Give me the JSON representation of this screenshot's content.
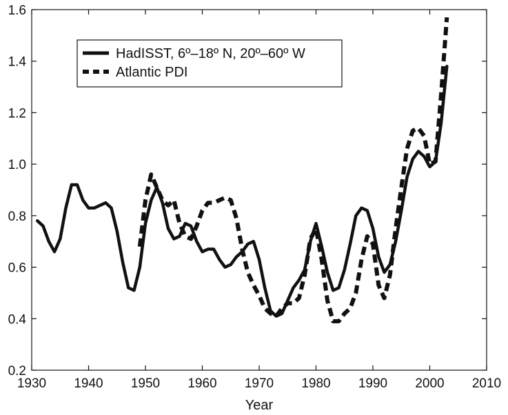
{
  "chart_data": {
    "type": "line",
    "title": "",
    "xlabel": "Year",
    "ylabel": "",
    "xlim": [
      1930,
      2010
    ],
    "ylim": [
      0.2,
      1.6
    ],
    "xticks": [
      1930,
      1940,
      1950,
      1960,
      1970,
      1980,
      1990,
      2000,
      2010
    ],
    "yticks": [
      0.2,
      0.4,
      0.6,
      0.8,
      1.0,
      1.2,
      1.4,
      1.6
    ],
    "xtick_labels": [
      "1930",
      "1940",
      "1950",
      "1960",
      "1970",
      "1980",
      "1990",
      "2000",
      "2010"
    ],
    "ytick_labels": [
      "0.2",
      "0.4",
      "0.6",
      "0.8",
      "1.0",
      "1.2",
      "1.4",
      "1.6"
    ],
    "grid": false,
    "legend_position": "top-left",
    "series": [
      {
        "name": "HadISST, 6º–18º N, 20º–60º W",
        "style": "solid",
        "color": "#111111",
        "x": [
          1931,
          1932,
          1933,
          1934,
          1935,
          1936,
          1937,
          1938,
          1939,
          1940,
          1941,
          1942,
          1943,
          1944,
          1945,
          1946,
          1947,
          1948,
          1949,
          1950,
          1951,
          1952,
          1953,
          1954,
          1955,
          1956,
          1957,
          1958,
          1959,
          1960,
          1961,
          1962,
          1963,
          1964,
          1965,
          1966,
          1967,
          1968,
          1969,
          1970,
          1971,
          1972,
          1973,
          1974,
          1975,
          1976,
          1977,
          1978,
          1979,
          1980,
          1981,
          1982,
          1983,
          1984,
          1985,
          1986,
          1987,
          1988,
          1989,
          1990,
          1991,
          1992,
          1993,
          1994,
          1995,
          1996,
          1997,
          1998,
          1999,
          2000,
          2001,
          2002,
          2003
        ],
        "y": [
          0.78,
          0.76,
          0.7,
          0.66,
          0.71,
          0.83,
          0.92,
          0.92,
          0.86,
          0.83,
          0.83,
          0.84,
          0.85,
          0.83,
          0.74,
          0.62,
          0.52,
          0.51,
          0.6,
          0.77,
          0.86,
          0.91,
          0.85,
          0.75,
          0.71,
          0.72,
          0.77,
          0.76,
          0.7,
          0.66,
          0.67,
          0.67,
          0.63,
          0.6,
          0.61,
          0.64,
          0.66,
          0.69,
          0.7,
          0.63,
          0.52,
          0.43,
          0.41,
          0.42,
          0.47,
          0.52,
          0.55,
          0.59,
          0.7,
          0.77,
          0.68,
          0.58,
          0.51,
          0.52,
          0.59,
          0.69,
          0.8,
          0.83,
          0.82,
          0.75,
          0.64,
          0.58,
          0.61,
          0.7,
          0.82,
          0.95,
          1.02,
          1.05,
          1.03,
          0.99,
          1.01,
          1.16,
          1.38
        ]
      },
      {
        "name": "Atlantic PDI",
        "style": "dashed",
        "color": "#111111",
        "x": [
          1949,
          1950,
          1951,
          1952,
          1953,
          1954,
          1955,
          1956,
          1957,
          1958,
          1959,
          1960,
          1961,
          1962,
          1963,
          1964,
          1965,
          1966,
          1967,
          1968,
          1969,
          1970,
          1971,
          1972,
          1973,
          1974,
          1975,
          1976,
          1977,
          1978,
          1979,
          1980,
          1981,
          1982,
          1983,
          1984,
          1985,
          1986,
          1987,
          1988,
          1989,
          1990,
          1991,
          1992,
          1993,
          1994,
          1995,
          1996,
          1997,
          1998,
          1999,
          2000,
          2001,
          2002,
          2003
        ],
        "y": [
          0.68,
          0.86,
          0.96,
          0.91,
          0.86,
          0.84,
          0.86,
          0.77,
          0.72,
          0.71,
          0.76,
          0.82,
          0.85,
          0.85,
          0.86,
          0.87,
          0.86,
          0.79,
          0.67,
          0.58,
          0.53,
          0.49,
          0.44,
          0.42,
          0.41,
          0.44,
          0.46,
          0.46,
          0.48,
          0.57,
          0.71,
          0.75,
          0.63,
          0.47,
          0.39,
          0.39,
          0.42,
          0.44,
          0.5,
          0.63,
          0.72,
          0.69,
          0.53,
          0.48,
          0.57,
          0.75,
          0.91,
          1.06,
          1.13,
          1.14,
          1.11,
          1.0,
          1.01,
          1.27,
          1.57
        ]
      }
    ]
  }
}
